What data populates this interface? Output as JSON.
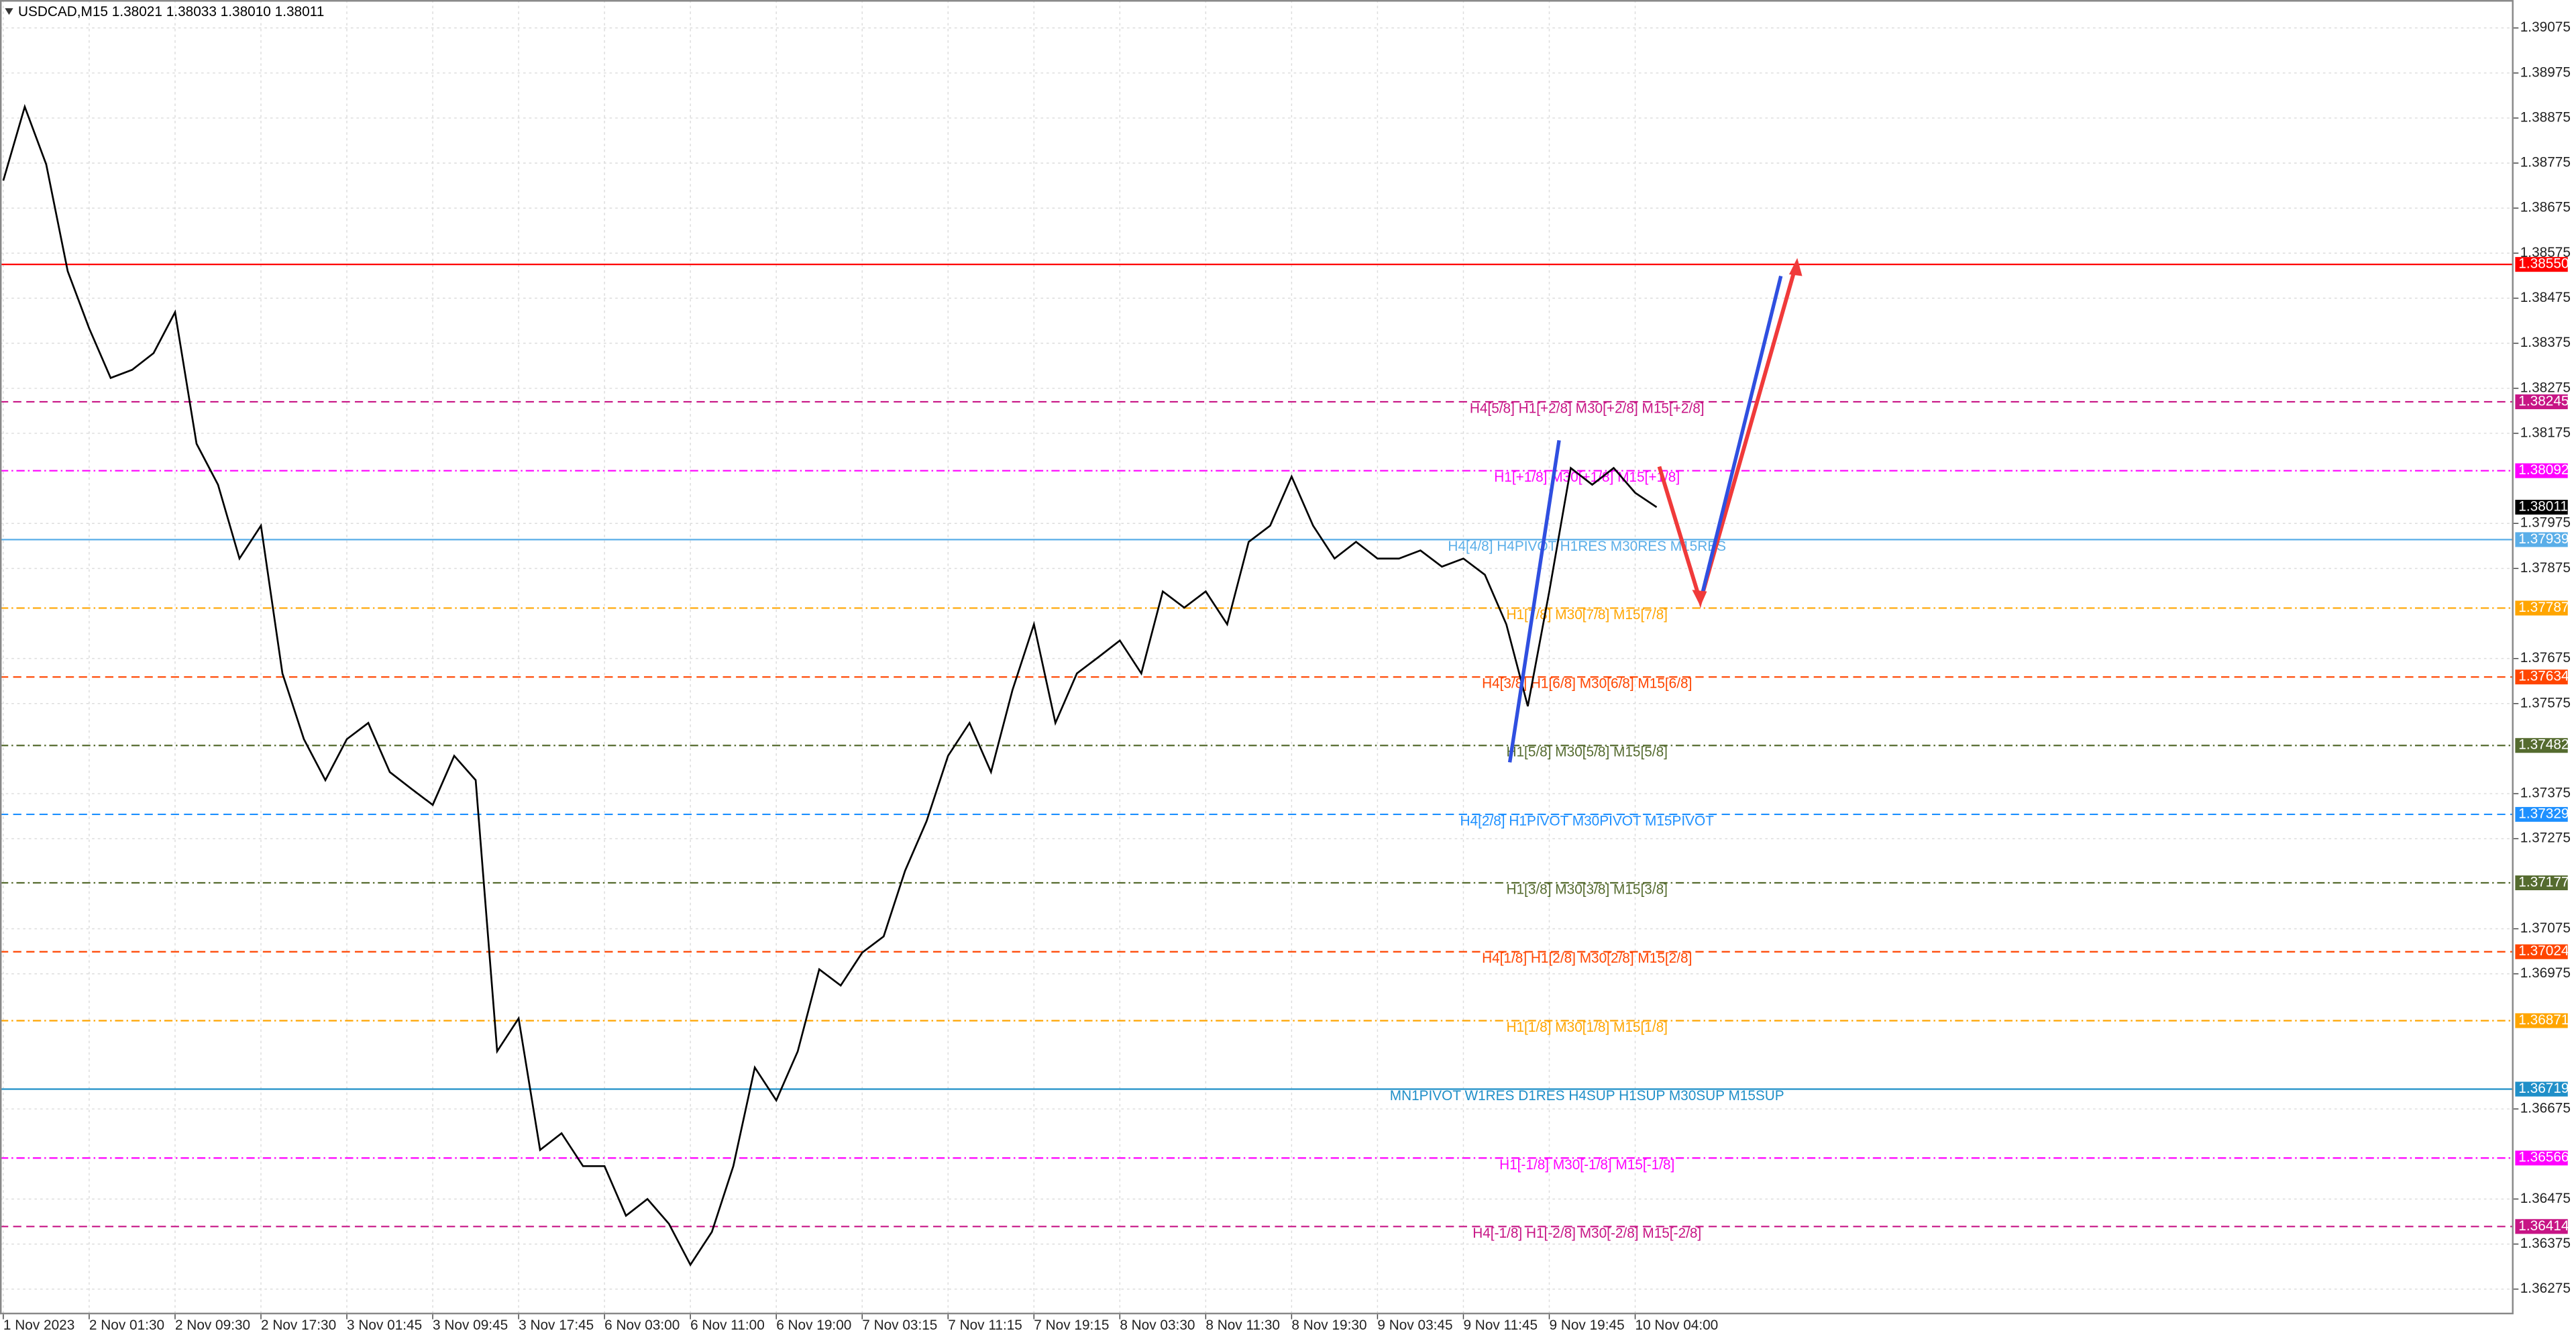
{
  "chart_data": {
    "type": "line",
    "title": "USDCAD,M15  1.38021 1.38033 1.38010 1.38011",
    "categories": [
      "1 Nov 2023",
      null,
      null,
      null,
      "2 Nov 01:30",
      null,
      null,
      null,
      "2 Nov 09:30",
      null,
      null,
      null,
      "2 Nov 17:30",
      null,
      null,
      null,
      "3 Nov 01:45",
      null,
      null,
      null,
      "3 Nov 09:45",
      null,
      null,
      null,
      "3 Nov 17:45",
      null,
      null,
      null,
      "6 Nov 03:00",
      null,
      null,
      null,
      "6 Nov 11:00",
      null,
      null,
      null,
      "6 Nov 19:00",
      null,
      null,
      null,
      "7 Nov 03:15",
      null,
      null,
      null,
      "7 Nov 11:15",
      null,
      null,
      null,
      "7 Nov 19:15",
      null,
      null,
      null,
      "8 Nov 03:30",
      null,
      null,
      null,
      "8 Nov 11:30",
      null,
      null,
      null,
      "8 Nov 19:30",
      null,
      null,
      null,
      "9 Nov 03:45",
      null,
      null,
      null,
      "9 Nov 11:45",
      null,
      null,
      null,
      "9 Nov 19:45",
      null,
      null,
      null,
      "10 Nov 04:00",
      null
    ],
    "values": [
      1.38736,
      1.389,
      1.38772,
      1.38535,
      1.38408,
      1.38298,
      1.38316,
      1.38353,
      1.38444,
      1.38152,
      1.38061,
      1.37897,
      1.3797,
      1.37642,
      1.37496,
      1.37405,
      1.37496,
      1.37532,
      1.37423,
      1.37386,
      1.3735,
      1.37459,
      1.37405,
      1.36803,
      1.36876,
      1.36584,
      1.36621,
      1.36548,
      1.36548,
      1.36438,
      1.36475,
      1.3642,
      1.36329,
      1.36402,
      1.36548,
      1.36767,
      1.36694,
      1.36803,
      1.36985,
      1.36949,
      1.37022,
      1.37058,
      1.37204,
      1.37314,
      1.37459,
      1.37532,
      1.37423,
      1.37605,
      1.37751,
      1.37532,
      1.37642,
      1.37678,
      1.37715,
      1.37642,
      1.37824,
      1.37788,
      1.37824,
      1.37751,
      1.37934,
      1.3797,
      1.38079,
      1.3797,
      1.37897,
      1.37934,
      1.37897,
      1.37897,
      1.37915,
      1.37879,
      1.37897,
      1.37861,
      1.37751,
      1.37569,
      1.37824,
      1.38098,
      1.38061,
      1.38098,
      1.38043,
      1.38011
    ],
    "color": "#000000",
    "ylim": [
      1.36219,
      1.39137
    ],
    "yticks": [
      1.36275,
      1.36375,
      1.36475,
      1.36675,
      1.36975,
      1.37075,
      1.37275,
      1.37375,
      1.37575,
      1.37675,
      1.37875,
      1.37975,
      1.38175,
      1.38275,
      1.38375,
      1.38475,
      1.38575,
      1.38675,
      1.38775,
      1.38875,
      1.38975,
      1.39075
    ],
    "grid": true,
    "current_price": 1.38011,
    "levels": [
      {
        "price": {
          "value": 1.3855,
          "label": "1.38550"
        },
        "color": "#ff0000",
        "style": "solid"
      },
      {
        "price": 1.38245,
        "label": "H4[5/8] H1[+2/8] M30[+2/8] M15[+2/8]",
        "color": "#c71585",
        "style": "dash"
      },
      {
        "price": 1.38092,
        "label": "H1[+1/8] M30[+1/8] M15[+1/8]",
        "color": "#ff00ff",
        "style": "dashdot"
      },
      {
        "price": 1.37939,
        "label": "H4[4/8] H4PIVOT H1RES M30RES M15RES",
        "color": "#5aaee8",
        "style": "solid"
      },
      {
        "price": 1.37787,
        "label": "H1[7/8] M30[7/8] M15[7/8]",
        "color": "#ffa500",
        "style": "dashdot"
      },
      {
        "price": 1.37634,
        "label": "H4[3/8] H1[6/8] M30[6/8] M15[6/8]",
        "color": "#ff4500",
        "style": "dash"
      },
      {
        "price": 1.37482,
        "label": "H1[5/8] M30[5/8] M15[5/8]",
        "color": "#556b2f",
        "style": "dashdot"
      },
      {
        "price": 1.37329,
        "label": "H4[2/8] H1PIVOT M30PIVOT M15PIVOT",
        "color": "#1e90ff",
        "style": "dash"
      },
      {
        "price": 1.37177,
        "label": "H1[3/8] M30[3/8] M15[3/8]",
        "color": "#556b2f",
        "style": "dashdot"
      },
      {
        "price": 1.37024,
        "label": "H4[1/8] H1[2/8] M30[2/8] M15[2/8]",
        "color": "#ff4500",
        "style": "dash"
      },
      {
        "price": 1.36871,
        "label": "H1[1/8] M30[1/8] M15[1/8]",
        "color": "#ffa500",
        "style": "dashdot"
      },
      {
        "price": 1.36719,
        "label": "MN1PIVOT W1RES D1RES H4SUP H1SUP M30SUP M15SUP",
        "color": "#1f8fc8",
        "style": "solid"
      },
      {
        "price": 1.36566,
        "label": "H1[-1/8] M30[-1/8] M15[-1/8]",
        "color": "#ff00ff",
        "style": "dashdot"
      },
      {
        "price": 1.36414,
        "label": "H4[-1/8] H1[-2/8] M30[-2/8] M15[-2/8]",
        "color": "#c71585",
        "style": "dash"
      }
    ]
  }
}
